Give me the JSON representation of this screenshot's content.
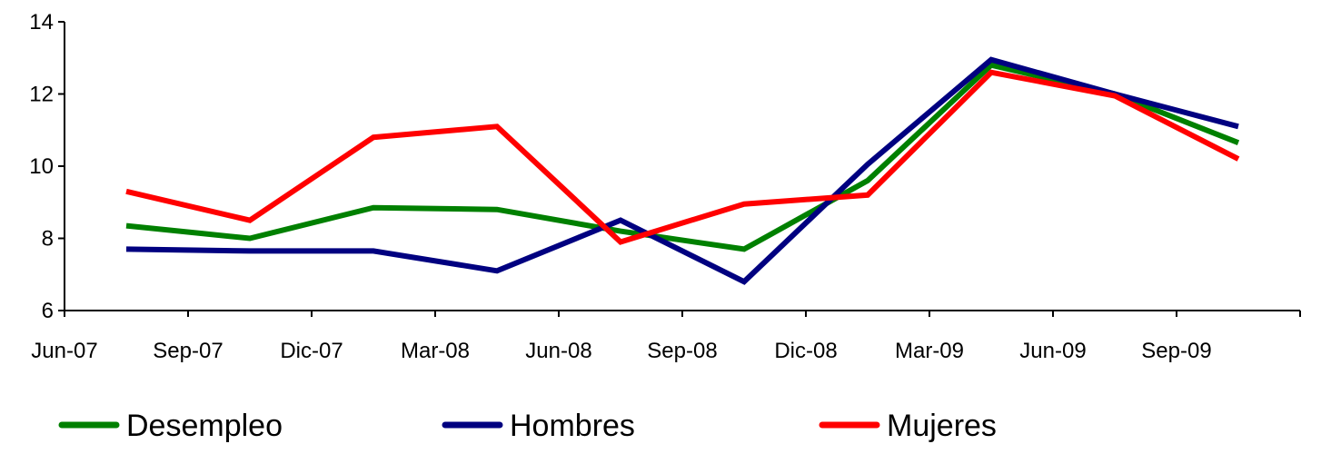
{
  "chart_data": {
    "type": "line",
    "title": "",
    "xlabel": "",
    "ylabel": "",
    "categories": [
      "Jun-07",
      "Sep-07",
      "Dic-07",
      "Mar-08",
      "Jun-08",
      "Sep-08",
      "Dic-08",
      "Mar-09",
      "Jun-09",
      "Sep-09"
    ],
    "ylim": [
      6,
      14
    ],
    "yticks": [
      6,
      8,
      10,
      12,
      14
    ],
    "grid": false,
    "legend_position": "bottom",
    "series": [
      {
        "name": "Desempleo",
        "color": "#008000",
        "values": [
          8.35,
          8.0,
          8.85,
          8.8,
          8.2,
          7.7,
          9.6,
          12.8,
          12.0,
          10.65
        ]
      },
      {
        "name": "Hombres",
        "color": "#000080",
        "values": [
          7.7,
          7.65,
          7.65,
          7.1,
          8.5,
          6.8,
          10.05,
          12.95,
          12.0,
          11.1
        ]
      },
      {
        "name": "Mujeres",
        "color": "#ff0000",
        "values": [
          9.3,
          8.5,
          10.8,
          11.1,
          7.9,
          8.95,
          9.2,
          12.6,
          11.95,
          10.2
        ]
      }
    ]
  }
}
